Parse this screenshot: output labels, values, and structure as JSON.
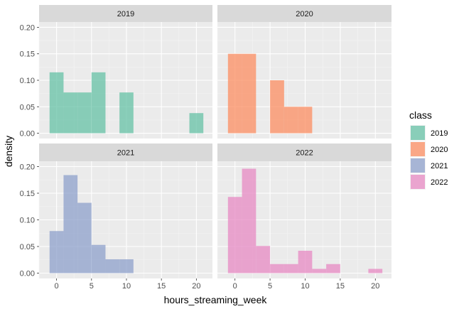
{
  "chart_data": {
    "type": "bar",
    "xlabel": "hours_streaming_week",
    "ylabel": "density",
    "xlim": [
      -2.5,
      22.3
    ],
    "ylim": [
      -0.01,
      0.21
    ],
    "x_ticks": [
      0,
      5,
      10,
      15,
      20
    ],
    "y_ticks": [
      0.0,
      0.05,
      0.1,
      0.15,
      0.2
    ],
    "x_tick_labels": [
      "0",
      "5",
      "10",
      "15",
      "20"
    ],
    "y_tick_labels": [
      "0.00",
      "0.05",
      "0.10",
      "0.15",
      "0.20"
    ],
    "bin_width": 2,
    "legend": {
      "title": "class",
      "position": "right",
      "entries": [
        "2019",
        "2020",
        "2021",
        "2022"
      ]
    },
    "colors": {
      "2019": "#66c2a5",
      "2020": "#fc8d62",
      "2021": "#8da0cb",
      "2022": "#e78ac3"
    },
    "series": [
      {
        "name": "2019",
        "bins": [
          {
            "x0": -1,
            "x1": 1,
            "y": 0.115
          },
          {
            "x0": 1,
            "x1": 3,
            "y": 0.077
          },
          {
            "x0": 3,
            "x1": 5,
            "y": 0.077
          },
          {
            "x0": 5,
            "x1": 7,
            "y": 0.115
          },
          {
            "x0": 9,
            "x1": 11,
            "y": 0.077
          },
          {
            "x0": 19,
            "x1": 21,
            "y": 0.038
          }
        ]
      },
      {
        "name": "2020",
        "bins": [
          {
            "x0": -1,
            "x1": 1,
            "y": 0.15
          },
          {
            "x0": 1,
            "x1": 3,
            "y": 0.15
          },
          {
            "x0": 5,
            "x1": 7,
            "y": 0.1
          },
          {
            "x0": 7,
            "x1": 9,
            "y": 0.05
          },
          {
            "x0": 9,
            "x1": 11,
            "y": 0.05
          }
        ]
      },
      {
        "name": "2021",
        "bins": [
          {
            "x0": -1,
            "x1": 1,
            "y": 0.079
          },
          {
            "x0": 1,
            "x1": 3,
            "y": 0.184
          },
          {
            "x0": 3,
            "x1": 5,
            "y": 0.132
          },
          {
            "x0": 5,
            "x1": 7,
            "y": 0.053
          },
          {
            "x0": 7,
            "x1": 9,
            "y": 0.026
          },
          {
            "x0": 9,
            "x1": 11,
            "y": 0.026
          }
        ]
      },
      {
        "name": "2022",
        "bins": [
          {
            "x0": -1,
            "x1": 1,
            "y": 0.143
          },
          {
            "x0": 1,
            "x1": 3,
            "y": 0.196
          },
          {
            "x0": 3,
            "x1": 5,
            "y": 0.051
          },
          {
            "x0": 5,
            "x1": 7,
            "y": 0.017
          },
          {
            "x0": 7,
            "x1": 9,
            "y": 0.017
          },
          {
            "x0": 9,
            "x1": 11,
            "y": 0.042
          },
          {
            "x0": 11,
            "x1": 13,
            "y": 0.008
          },
          {
            "x0": 13,
            "x1": 15,
            "y": 0.017
          },
          {
            "x0": 19,
            "x1": 21,
            "y": 0.008
          }
        ]
      }
    ]
  }
}
